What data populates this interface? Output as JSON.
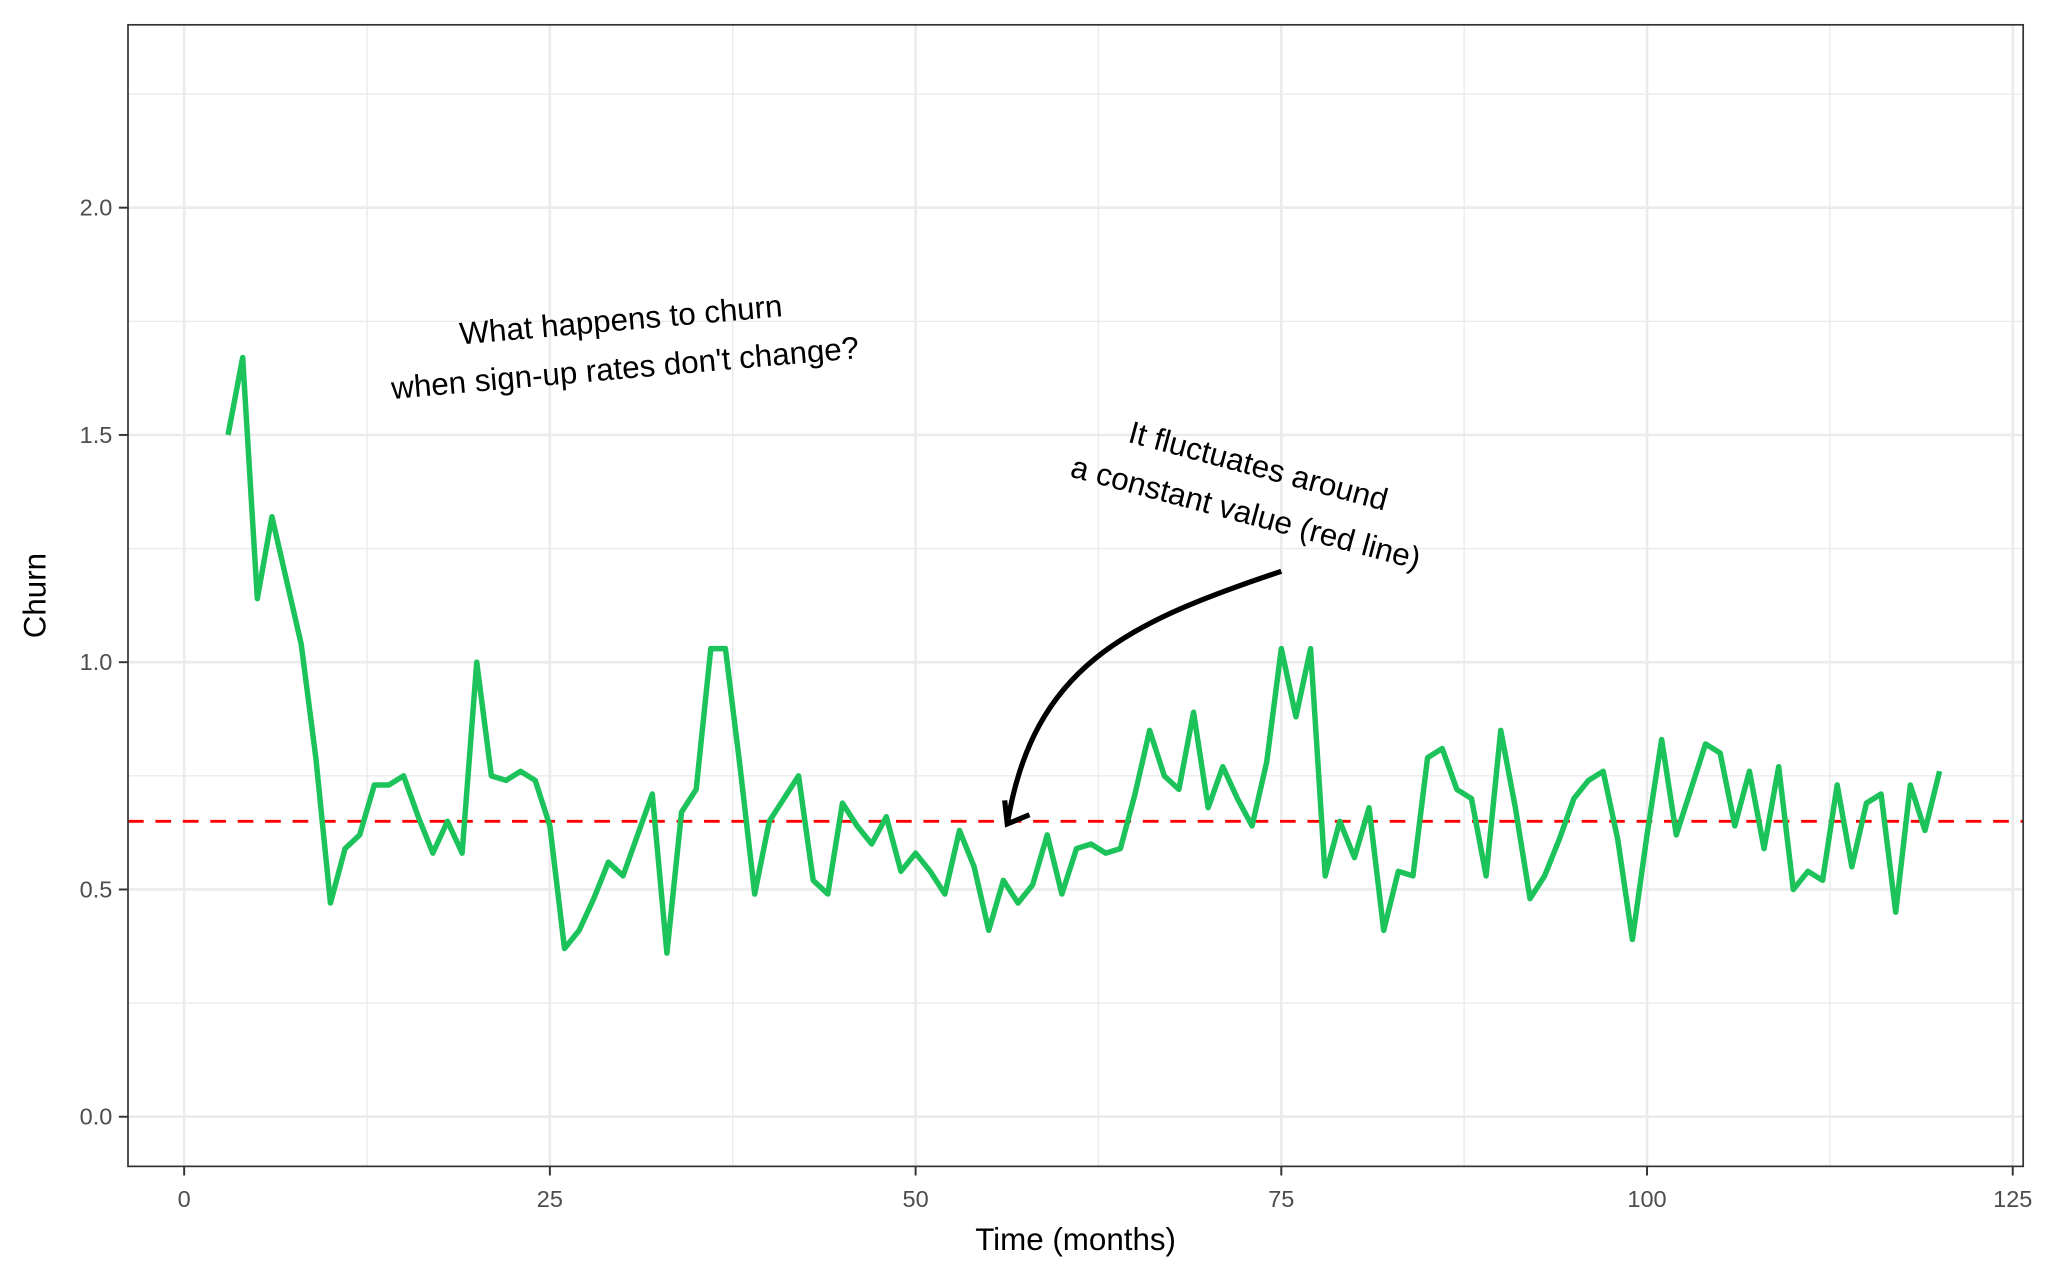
{
  "chart_data": {
    "type": "line",
    "title": "",
    "xlabel": "Time (months)",
    "ylabel": "Churn",
    "xlim": [
      -3.5,
      125.5
    ],
    "ylim": [
      -0.11,
      2.33
    ],
    "x_ticks": [
      0,
      25,
      50,
      75,
      100,
      125
    ],
    "y_ticks": [
      0.0,
      0.5,
      1.0,
      1.5,
      2.0
    ],
    "x_tick_labels": [
      "0",
      "25",
      "50",
      "75",
      "100",
      "125"
    ],
    "y_tick_labels": [
      "0.0",
      "0.5",
      "1.0",
      "1.5",
      "2.0"
    ],
    "grid": true,
    "legend": null,
    "series": [
      {
        "name": "Churn",
        "color": "#1CC35A",
        "style": "solid",
        "x": [
          3,
          4,
          5,
          6,
          7,
          8,
          9,
          10,
          11,
          12,
          13,
          14,
          15,
          16,
          17,
          18,
          19,
          20,
          21,
          22,
          23,
          24,
          25,
          26,
          27,
          28,
          29,
          30,
          31,
          32,
          33,
          34,
          35,
          36,
          37,
          38,
          39,
          40,
          41,
          42,
          43,
          44,
          45,
          46,
          47,
          48,
          49,
          50,
          51,
          52,
          53,
          54,
          55,
          56,
          57,
          58,
          59,
          60,
          61,
          62,
          63,
          64,
          65,
          66,
          67,
          68,
          69,
          70,
          71,
          72,
          73,
          74,
          75,
          76,
          77,
          78,
          79,
          80,
          81,
          82,
          83,
          84,
          85,
          86,
          87,
          88,
          89,
          90,
          91,
          92,
          93,
          94,
          95,
          96,
          97,
          98,
          99,
          100,
          101,
          102,
          103,
          104,
          105,
          106,
          107,
          108,
          109,
          110,
          111,
          112,
          113,
          114,
          115,
          116,
          117,
          118,
          119,
          120
        ],
        "values": [
          1.5,
          1.67,
          1.14,
          1.32,
          1.18,
          1.04,
          0.79,
          0.47,
          0.59,
          0.62,
          0.73,
          0.73,
          0.75,
          0.66,
          0.58,
          0.65,
          0.58,
          1.0,
          0.75,
          0.74,
          0.76,
          0.74,
          0.64,
          0.37,
          0.41,
          0.48,
          0.56,
          0.53,
          0.62,
          0.71,
          0.36,
          0.67,
          0.72,
          1.03,
          1.03,
          0.77,
          0.49,
          0.65,
          0.7,
          0.75,
          0.52,
          0.49,
          0.69,
          0.64,
          0.6,
          0.66,
          0.54,
          0.58,
          0.54,
          0.49,
          0.63,
          0.55,
          0.41,
          0.52,
          0.47,
          0.51,
          0.62,
          0.49,
          0.59,
          0.6,
          0.58,
          0.59,
          0.71,
          0.85,
          0.75,
          0.72,
          0.89,
          0.68,
          0.77,
          0.7,
          0.64,
          0.78,
          1.03,
          0.88,
          1.03,
          0.53,
          0.65,
          0.57,
          0.68,
          0.41,
          0.54,
          0.53,
          0.79,
          0.81,
          0.72,
          0.7,
          0.53,
          0.85,
          0.68,
          0.48,
          0.53,
          0.61,
          0.7,
          0.74,
          0.76,
          0.61,
          0.39,
          0.62,
          0.83,
          0.62,
          0.72,
          0.82,
          0.8,
          0.64,
          0.76,
          0.59,
          0.77,
          0.5,
          0.54,
          0.52,
          0.73,
          0.55,
          0.69,
          0.71,
          0.45,
          0.73,
          0.63,
          0.76
        ]
      },
      {
        "name": "Constant value",
        "color": "#FF0000",
        "style": "dashed",
        "hline": 0.65
      }
    ],
    "annotations": [
      {
        "lines": [
          "What happens to churn",
          "when sign-up rates don't change?"
        ],
        "x": 30,
        "y": 1.7,
        "angle": -5
      },
      {
        "lines": [
          "It fluctuates around",
          "a constant value (red line)"
        ],
        "x": 73,
        "y": 1.38,
        "angle": 15
      },
      {
        "type": "curved-arrow",
        "from": [
          75,
          1.2
        ],
        "to": [
          56,
          0.65
        ],
        "color": "#000000"
      }
    ]
  }
}
